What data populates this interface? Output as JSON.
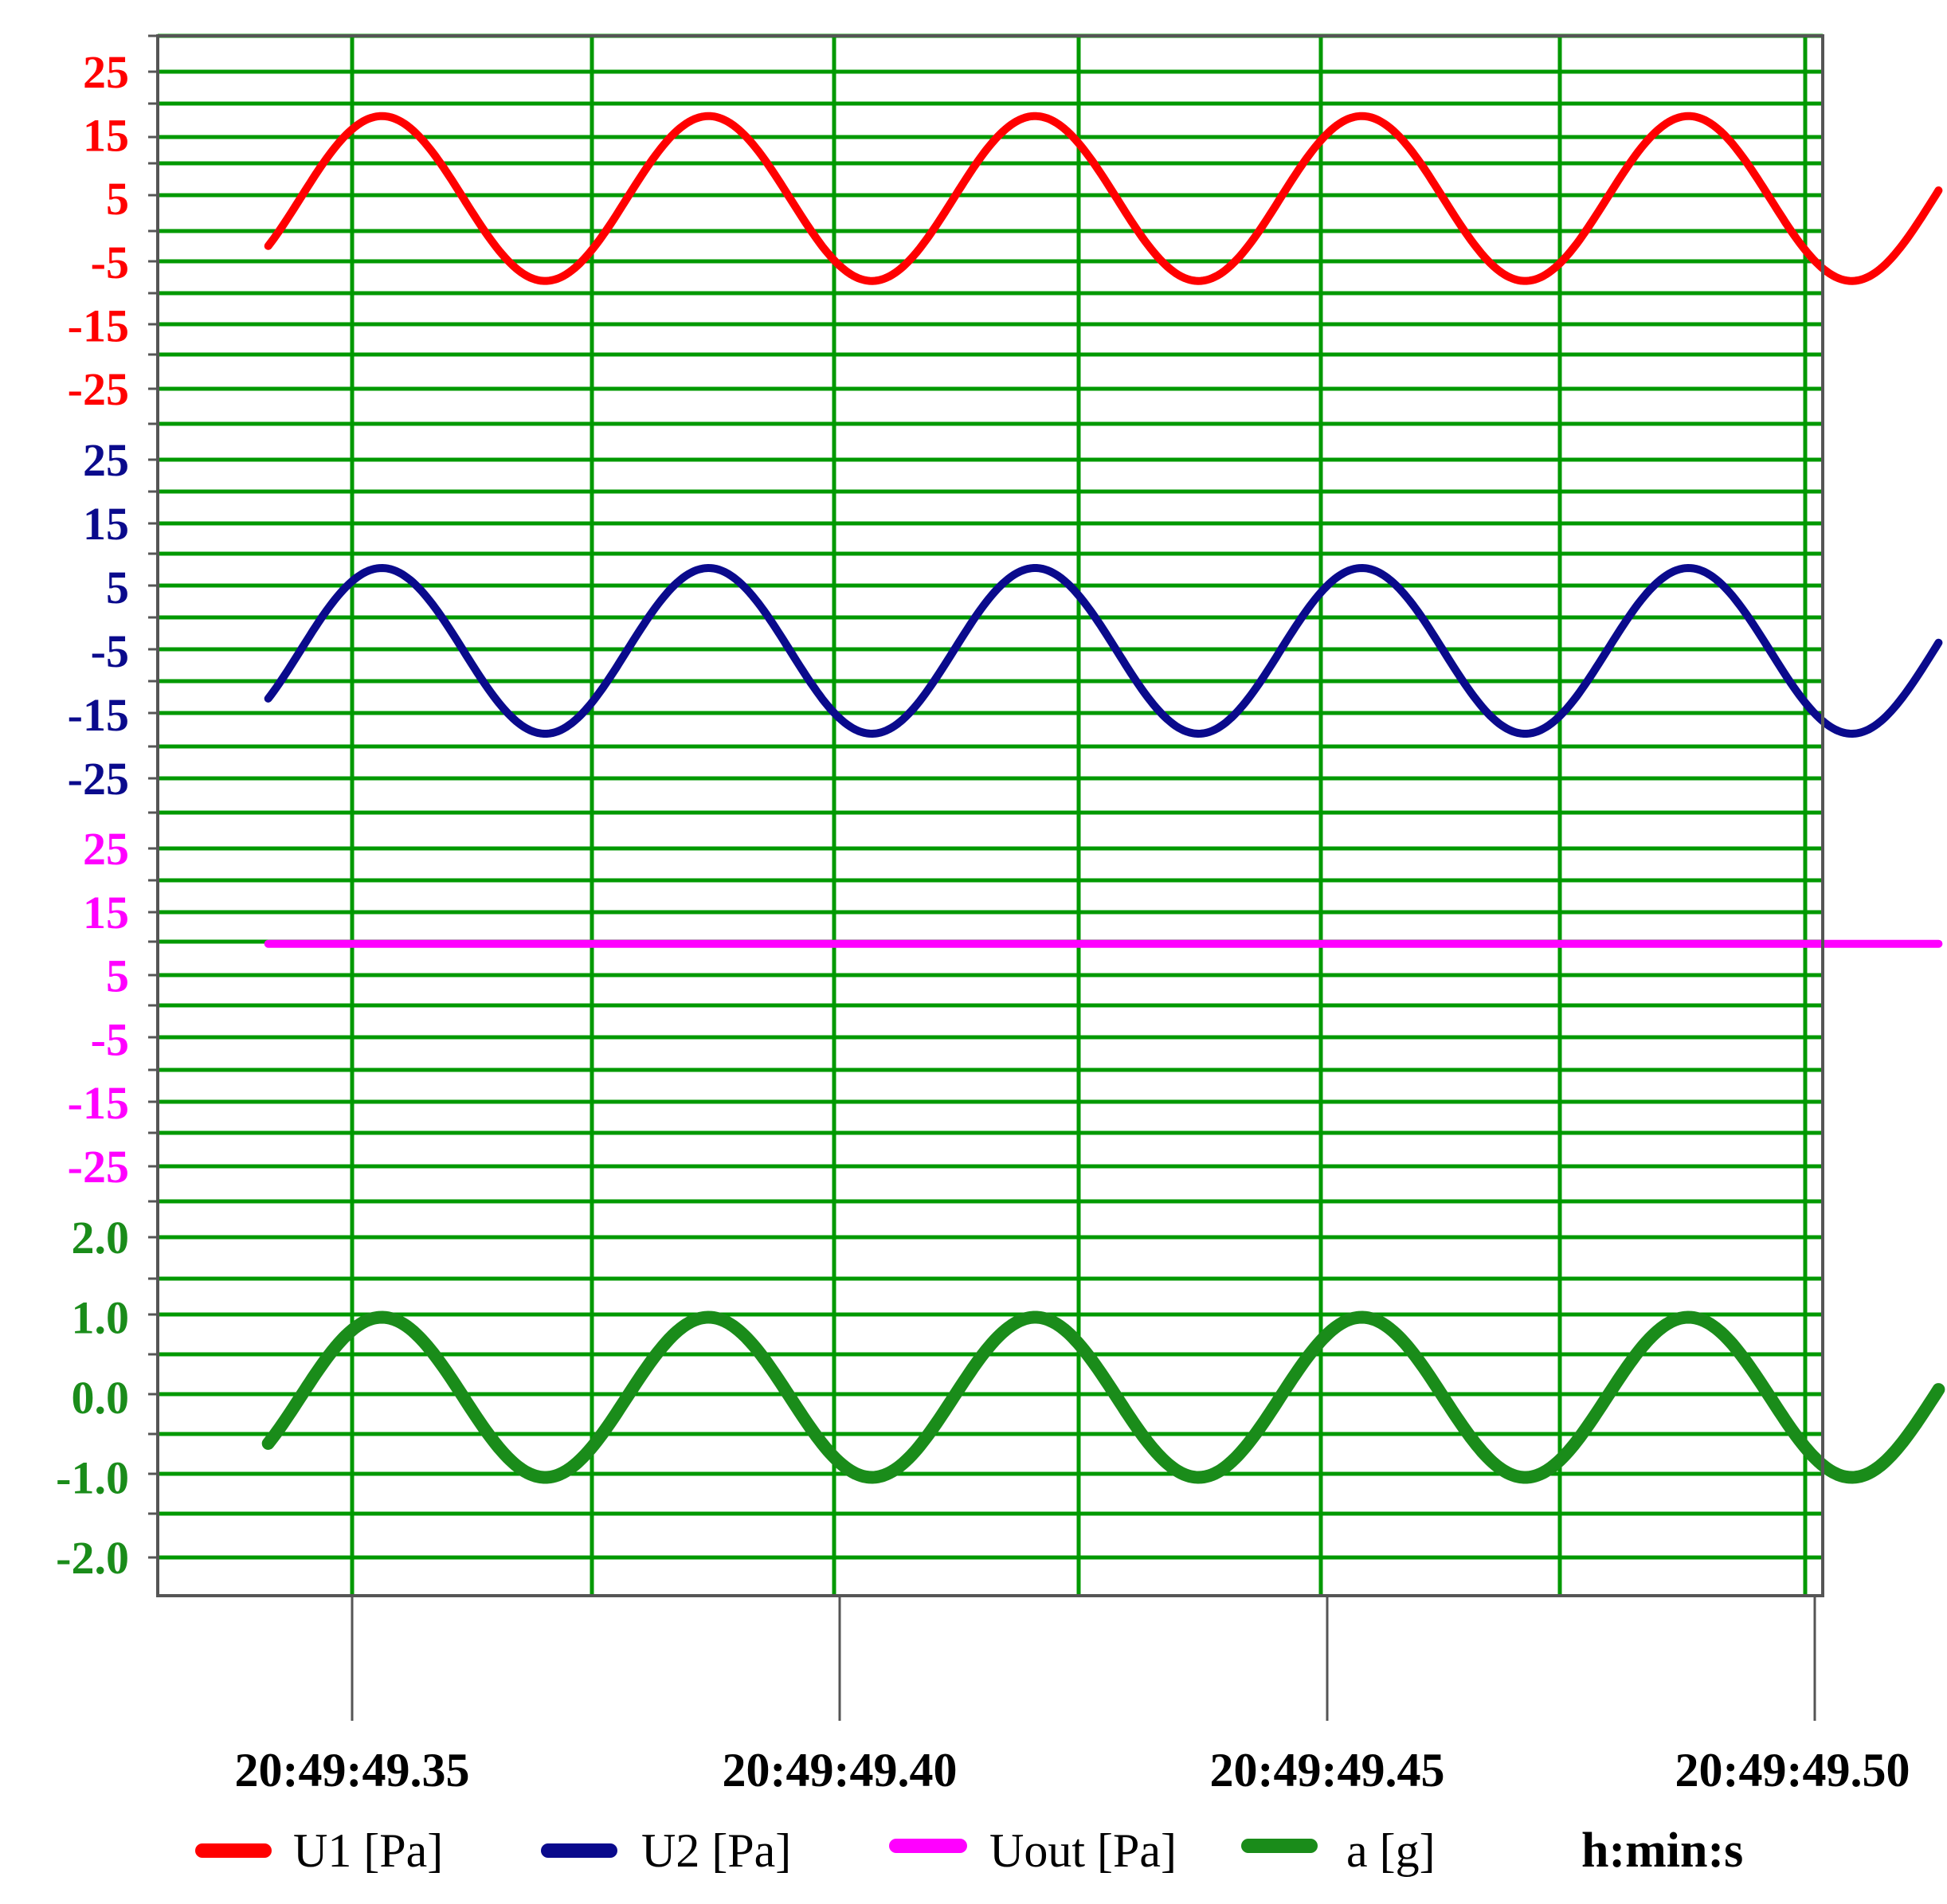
{
  "chart_data": {
    "type": "line",
    "x_unit_label": "h:min:s",
    "x_ticks": [
      "20:49:49.35",
      "20:49:49.40",
      "20:49:49.45",
      "20:49:49.50"
    ],
    "x_range": [
      20.0,
      0.0
    ],
    "grid": true,
    "grid_color": "#009900",
    "legend_placement": "bottom",
    "panels": [
      {
        "id": "u1",
        "series_name": "U1 [Pa]",
        "color": "#ff0000",
        "y_ticks": [
          "25",
          "15",
          "5",
          "-5",
          "-15",
          "-25"
        ],
        "y_range": [
          -25,
          25
        ],
        "amplitude": 13,
        "offset": 5,
        "period_ms": 33.5,
        "first_peak_ms": 3.05,
        "x_start_ms": -8.6,
        "x_end_ms": 162.7
      },
      {
        "id": "u2",
        "series_name": "U2 [Pa]",
        "color": "#0a0a8c",
        "y_ticks": [
          "25",
          "15",
          "5",
          "-5",
          "-15",
          "-25"
        ],
        "y_range": [
          -25,
          25
        ],
        "amplitude": 13,
        "offset": -5,
        "period_ms": 33.5,
        "first_peak_ms": 3.05,
        "x_start_ms": -8.6,
        "x_end_ms": 162.7
      },
      {
        "id": "uout",
        "series_name": "Uout [Pa]",
        "color": "#ff00ff",
        "y_ticks": [
          "25",
          "15",
          "5",
          "-5",
          "-15",
          "-25"
        ],
        "y_range": [
          -25,
          25
        ],
        "amplitude": 0,
        "offset": 10,
        "period_ms": 33.5,
        "first_peak_ms": 3.05,
        "x_start_ms": -8.6,
        "x_end_ms": 162.7
      },
      {
        "id": "a",
        "series_name": "a [g]",
        "color": "#1a8c1a",
        "y_ticks": [
          "2.0",
          "1.0",
          "0.0",
          "-1.0",
          "-2.0"
        ],
        "y_range": [
          -2,
          2
        ],
        "amplitude": 1.0,
        "offset": 0,
        "period_ms": 33.5,
        "first_peak_ms": 3.05,
        "x_start_ms": -8.6,
        "x_end_ms": 162.7
      }
    ]
  }
}
